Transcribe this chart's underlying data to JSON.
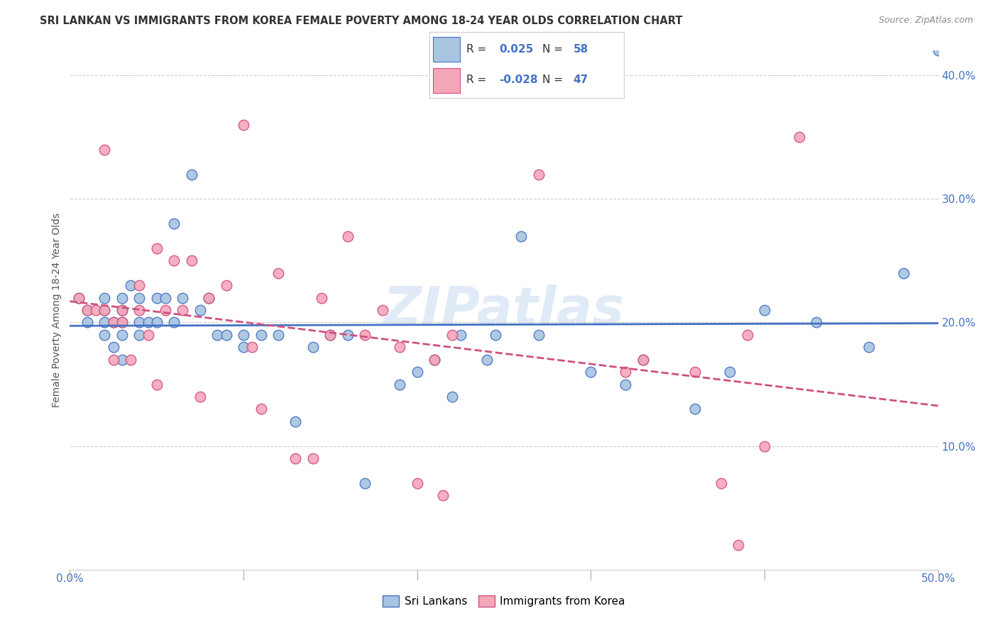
{
  "title": "SRI LANKAN VS IMMIGRANTS FROM KOREA FEMALE POVERTY AMONG 18-24 YEAR OLDS CORRELATION CHART",
  "source": "Source: ZipAtlas.com",
  "ylabel": "Female Poverty Among 18-24 Year Olds",
  "xlim": [
    0,
    0.5
  ],
  "ylim": [
    0,
    0.42
  ],
  "x_ticks": [
    0.0,
    0.1,
    0.2,
    0.3,
    0.4,
    0.5
  ],
  "x_tick_labels": [
    "0.0%",
    "",
    "",
    "",
    "",
    "50.0%"
  ],
  "y_ticks": [
    0.0,
    0.1,
    0.2,
    0.3,
    0.4
  ],
  "y_tick_labels": [
    "",
    "10.0%",
    "20.0%",
    "30.0%",
    "40.0%"
  ],
  "sri_lanka_color": "#a8c4e0",
  "korea_color": "#f4a7b9",
  "trendline_sri_lanka_color": "#4472c4",
  "trendline_korea_color": "#d05080",
  "legend_sri_r": "0.025",
  "legend_sri_n": "58",
  "legend_korea_r": "-0.028",
  "legend_korea_n": "47",
  "watermark": "ZIPatlas",
  "sri_lanka_x": [
    0.005,
    0.01,
    0.01,
    0.02,
    0.02,
    0.02,
    0.02,
    0.025,
    0.025,
    0.03,
    0.03,
    0.03,
    0.03,
    0.03,
    0.035,
    0.04,
    0.04,
    0.04,
    0.045,
    0.05,
    0.05,
    0.055,
    0.06,
    0.06,
    0.065,
    0.07,
    0.075,
    0.08,
    0.085,
    0.09,
    0.1,
    0.1,
    0.11,
    0.12,
    0.13,
    0.14,
    0.15,
    0.16,
    0.17,
    0.19,
    0.2,
    0.21,
    0.22,
    0.225,
    0.24,
    0.245,
    0.26,
    0.27,
    0.3,
    0.32,
    0.33,
    0.36,
    0.38,
    0.4,
    0.43,
    0.46,
    0.48,
    0.5
  ],
  "sri_lanka_y": [
    0.22,
    0.21,
    0.2,
    0.22,
    0.21,
    0.2,
    0.19,
    0.2,
    0.18,
    0.22,
    0.21,
    0.2,
    0.19,
    0.17,
    0.23,
    0.22,
    0.2,
    0.19,
    0.2,
    0.22,
    0.2,
    0.22,
    0.28,
    0.2,
    0.22,
    0.32,
    0.21,
    0.22,
    0.19,
    0.19,
    0.19,
    0.18,
    0.19,
    0.19,
    0.12,
    0.18,
    0.19,
    0.19,
    0.07,
    0.15,
    0.16,
    0.17,
    0.14,
    0.19,
    0.17,
    0.19,
    0.27,
    0.19,
    0.16,
    0.15,
    0.17,
    0.13,
    0.16,
    0.21,
    0.2,
    0.18,
    0.24,
    0.42
  ],
  "korea_x": [
    0.005,
    0.01,
    0.015,
    0.02,
    0.02,
    0.025,
    0.025,
    0.03,
    0.03,
    0.035,
    0.04,
    0.04,
    0.045,
    0.05,
    0.05,
    0.055,
    0.06,
    0.065,
    0.07,
    0.075,
    0.08,
    0.09,
    0.1,
    0.105,
    0.11,
    0.12,
    0.13,
    0.14,
    0.145,
    0.15,
    0.16,
    0.17,
    0.18,
    0.19,
    0.2,
    0.21,
    0.215,
    0.22,
    0.27,
    0.32,
    0.33,
    0.36,
    0.375,
    0.385,
    0.39,
    0.4,
    0.42
  ],
  "korea_y": [
    0.22,
    0.21,
    0.21,
    0.21,
    0.34,
    0.2,
    0.17,
    0.21,
    0.2,
    0.17,
    0.23,
    0.21,
    0.19,
    0.26,
    0.15,
    0.21,
    0.25,
    0.21,
    0.25,
    0.14,
    0.22,
    0.23,
    0.36,
    0.18,
    0.13,
    0.24,
    0.09,
    0.09,
    0.22,
    0.19,
    0.27,
    0.19,
    0.21,
    0.18,
    0.07,
    0.17,
    0.06,
    0.19,
    0.32,
    0.16,
    0.17,
    0.16,
    0.07,
    0.02,
    0.19,
    0.1,
    0.35
  ]
}
